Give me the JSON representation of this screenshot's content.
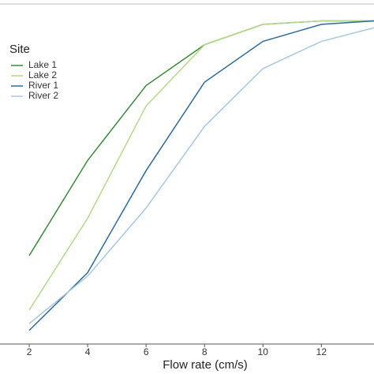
{
  "chart_data": {
    "type": "line",
    "x_label": "Flow rate (cm/s)",
    "legend_title": "Site",
    "x": [
      2,
      4,
      6,
      8,
      10,
      12,
      13.8
    ],
    "xlim": [
      1,
      13.8
    ],
    "xticks": [
      2,
      4,
      6,
      8,
      10,
      12
    ],
    "ylim": [
      0,
      1
    ],
    "series": [
      {
        "name": "Lake 1",
        "color": "#3a8a3a",
        "values": [
          0.26,
          0.54,
          0.76,
          0.88,
          0.94,
          0.95,
          0.95
        ]
      },
      {
        "name": "Lake 2",
        "color": "#b5d98a",
        "values": [
          0.1,
          0.37,
          0.7,
          0.88,
          0.94,
          0.95,
          0.95
        ]
      },
      {
        "name": "River 1",
        "color": "#2d6a9a",
        "values": [
          0.04,
          0.21,
          0.51,
          0.77,
          0.89,
          0.94,
          0.95
        ]
      },
      {
        "name": "River 2",
        "color": "#a8c8dc",
        "values": [
          0.06,
          0.2,
          0.4,
          0.64,
          0.81,
          0.89,
          0.93
        ]
      }
    ],
    "legend_position": "top-left"
  }
}
